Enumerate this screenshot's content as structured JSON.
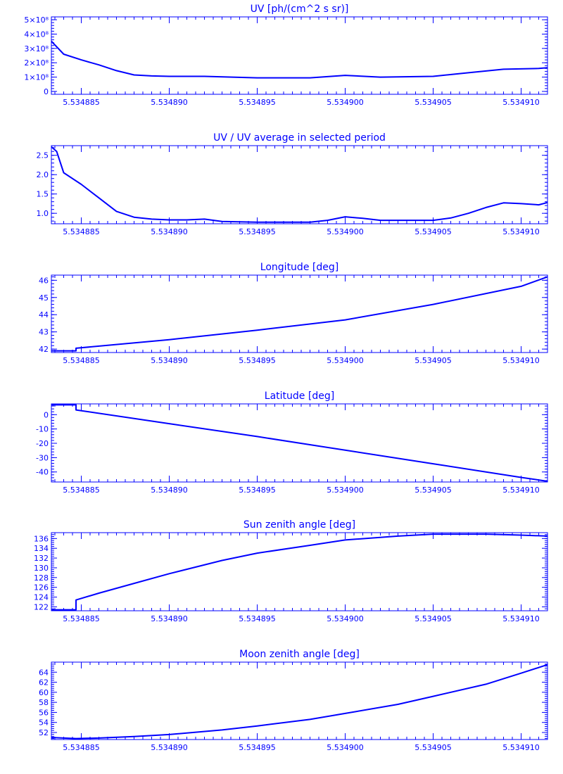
{
  "chart_data": [
    {
      "type": "line",
      "title": "UV [ph/(cm^2 s sr)]",
      "color": "#0000ff",
      "xlim": [
        5.5348833,
        5.5349115
      ],
      "ylim": [
        -0.2,
        5.2
      ],
      "x_ticks": [
        "5.534885",
        "5.534890",
        "5.534895",
        "5.534900",
        "5.534905",
        "5.534910"
      ],
      "x_tick_values": [
        5.534885,
        5.53489,
        5.534895,
        5.5349,
        5.534905,
        5.53491
      ],
      "y_ticks": [
        0,
        1,
        2,
        3,
        4,
        5
      ],
      "y_tick_labels": [
        "0",
        "1×10⁸",
        "2×10⁸",
        "3×10⁸",
        "4×10⁸",
        "5×10⁸"
      ],
      "series": [
        {
          "x": [
            5.5348833,
            5.534884,
            5.534885,
            5.534886,
            5.534887,
            5.534888,
            5.534889,
            5.53489,
            5.534892,
            5.534895,
            5.534898,
            5.5349,
            5.534902,
            5.534905,
            5.534907,
            5.534909,
            5.534911,
            5.5349115
          ],
          "y": [
            3.5,
            2.6,
            2.2,
            1.85,
            1.45,
            1.15,
            1.08,
            1.05,
            1.05,
            0.95,
            0.95,
            1.12,
            1.0,
            1.05,
            1.3,
            1.55,
            1.6,
            1.65
          ]
        }
      ]
    },
    {
      "type": "line",
      "title": "UV / UV average in selected period",
      "color": "#0000ff",
      "xlim": [
        5.5348833,
        5.5349115
      ],
      "ylim": [
        0.73,
        2.75
      ],
      "x_ticks": [
        "5.534885",
        "5.534890",
        "5.534895",
        "5.534900",
        "5.534905",
        "5.534910"
      ],
      "x_tick_values": [
        5.534885,
        5.53489,
        5.534895,
        5.5349,
        5.534905,
        5.53491
      ],
      "y_ticks": [
        1.0,
        1.5,
        2.0,
        2.5
      ],
      "y_tick_labels": [
        "1.0",
        "1.5",
        "2.0",
        "2.5"
      ],
      "series": [
        {
          "x": [
            5.5348833,
            5.5348836,
            5.534884,
            5.534885,
            5.534886,
            5.534887,
            5.534888,
            5.534889,
            5.53489,
            5.534891,
            5.534892,
            5.534893,
            5.534895,
            5.534898,
            5.534899,
            5.5349,
            5.534901,
            5.534902,
            5.534903,
            5.534905,
            5.534906,
            5.534907,
            5.534908,
            5.534909,
            5.53491,
            5.534911,
            5.5349115
          ],
          "y": [
            2.72,
            2.6,
            2.05,
            1.75,
            1.4,
            1.05,
            0.9,
            0.85,
            0.83,
            0.83,
            0.85,
            0.79,
            0.77,
            0.77,
            0.82,
            0.91,
            0.87,
            0.82,
            0.82,
            0.82,
            0.88,
            1.0,
            1.15,
            1.27,
            1.25,
            1.22,
            1.28
          ]
        }
      ]
    },
    {
      "type": "line",
      "title": "Longitude [deg]",
      "color": "#0000ff",
      "xlim": [
        5.5348833,
        5.5349115
      ],
      "ylim": [
        41.8,
        46.3
      ],
      "x_ticks": [
        "5.534885",
        "5.534890",
        "5.534895",
        "5.534900",
        "5.534905",
        "5.534910"
      ],
      "x_tick_values": [
        5.534885,
        5.53489,
        5.534895,
        5.5349,
        5.534905,
        5.53491
      ],
      "y_ticks": [
        42,
        43,
        44,
        45,
        46
      ],
      "y_tick_labels": [
        "42",
        "43",
        "44",
        "45",
        "46"
      ],
      "series": [
        {
          "x": [
            5.5348833,
            5.5348847,
            5.5348847,
            5.53489,
            5.534895,
            5.5349,
            5.534905,
            5.53491,
            5.5349115
          ],
          "y": [
            41.9,
            41.9,
            42.05,
            42.55,
            43.1,
            43.7,
            44.6,
            45.65,
            46.2
          ]
        }
      ]
    },
    {
      "type": "line",
      "title": "Latitude [deg]",
      "color": "#0000ff",
      "xlim": [
        5.5348833,
        5.5349115
      ],
      "ylim": [
        -47,
        7.5
      ],
      "x_ticks": [
        "5.534885",
        "5.534890",
        "5.534895",
        "5.534900",
        "5.534905",
        "5.534910"
      ],
      "x_tick_values": [
        5.534885,
        5.53489,
        5.534895,
        5.5349,
        5.534905,
        5.53491
      ],
      "y_ticks": [
        0,
        -10,
        -20,
        -30,
        -40
      ],
      "y_tick_labels": [
        "0",
        "-10",
        "-20",
        "-30",
        "-40"
      ],
      "series": [
        {
          "x": [
            5.5348833,
            5.5348847,
            5.5348847,
            5.53489,
            5.534895,
            5.5349,
            5.534905,
            5.53491,
            5.5349115
          ],
          "y": [
            6.8,
            6.8,
            3.3,
            -6.3,
            -15.3,
            -24.8,
            -34.3,
            -43.8,
            -46.5
          ]
        }
      ]
    },
    {
      "type": "line",
      "title": "Sun zenith angle [deg]",
      "color": "#0000ff",
      "xlim": [
        5.5348833,
        5.5349115
      ],
      "ylim": [
        121.2,
        137.2
      ],
      "x_ticks": [
        "5.534885",
        "5.534890",
        "5.534895",
        "5.534900",
        "5.534905",
        "5.534910"
      ],
      "x_tick_values": [
        5.534885,
        5.53489,
        5.534895,
        5.5349,
        5.534905,
        5.53491
      ],
      "y_ticks": [
        122,
        124,
        126,
        128,
        130,
        132,
        134,
        136
      ],
      "y_tick_labels": [
        "122",
        "124",
        "126",
        "128",
        "130",
        "132",
        "134",
        "136"
      ],
      "series": [
        {
          "x": [
            5.5348833,
            5.5348847,
            5.5348847,
            5.534886,
            5.534888,
            5.53489,
            5.534893,
            5.534895,
            5.534898,
            5.5349,
            5.534903,
            5.534905,
            5.534908,
            5.53491,
            5.5349115
          ],
          "y": [
            121.4,
            121.4,
            123.4,
            124.8,
            126.8,
            128.8,
            131.5,
            133.0,
            134.6,
            135.7,
            136.5,
            136.9,
            136.9,
            136.7,
            136.5
          ]
        }
      ]
    },
    {
      "type": "line",
      "title": "Moon zenith angle [deg]",
      "color": "#0000ff",
      "xlim": [
        5.5348833,
        5.5349115
      ],
      "ylim": [
        50.6,
        66
      ],
      "x_ticks": [
        "5.534885",
        "5.534890",
        "5.534895",
        "5.534900",
        "5.534905",
        "5.534910"
      ],
      "x_tick_values": [
        5.534885,
        5.53489,
        5.534895,
        5.5349,
        5.534905,
        5.53491
      ],
      "y_ticks": [
        52,
        54,
        56,
        58,
        60,
        62,
        64
      ],
      "y_tick_labels": [
        "52",
        "54",
        "56",
        "58",
        "60",
        "62",
        "64"
      ],
      "series": [
        {
          "x": [
            5.5348833,
            5.5348847,
            5.534886,
            5.534888,
            5.53489,
            5.534893,
            5.534895,
            5.534898,
            5.5349,
            5.534903,
            5.534905,
            5.534908,
            5.53491,
            5.5349115
          ],
          "y": [
            51.0,
            50.8,
            50.9,
            51.2,
            51.6,
            52.5,
            53.3,
            54.6,
            55.8,
            57.6,
            59.2,
            61.6,
            63.8,
            65.5
          ]
        }
      ]
    }
  ]
}
